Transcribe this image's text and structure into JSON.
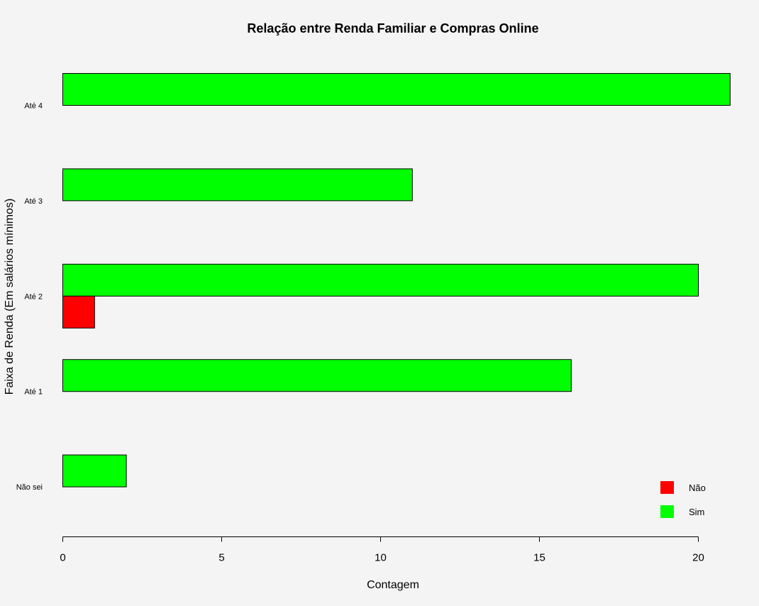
{
  "chart_data": {
    "type": "bar",
    "orientation": "horizontal",
    "title": "Relação entre Renda Familiar e Compras Online",
    "xlabel": "Contagem",
    "ylabel": "Faixa de Renda (Em salários mínimos)",
    "categories": [
      "Não sei",
      "Até 1",
      "Até 2",
      "Até 3",
      "Até 4"
    ],
    "series": [
      {
        "name": "Não",
        "color": "#ff0000",
        "values": [
          0,
          0,
          1,
          0,
          0
        ]
      },
      {
        "name": "Sim",
        "color": "#00ff00",
        "values": [
          2,
          16,
          20,
          11,
          21
        ]
      }
    ],
    "xlim": [
      0,
      21
    ],
    "xticks": [
      0,
      5,
      10,
      15,
      20
    ],
    "legend": {
      "position": "bottom-right",
      "entries": [
        "Não",
        "Sim"
      ]
    },
    "grid": false
  }
}
